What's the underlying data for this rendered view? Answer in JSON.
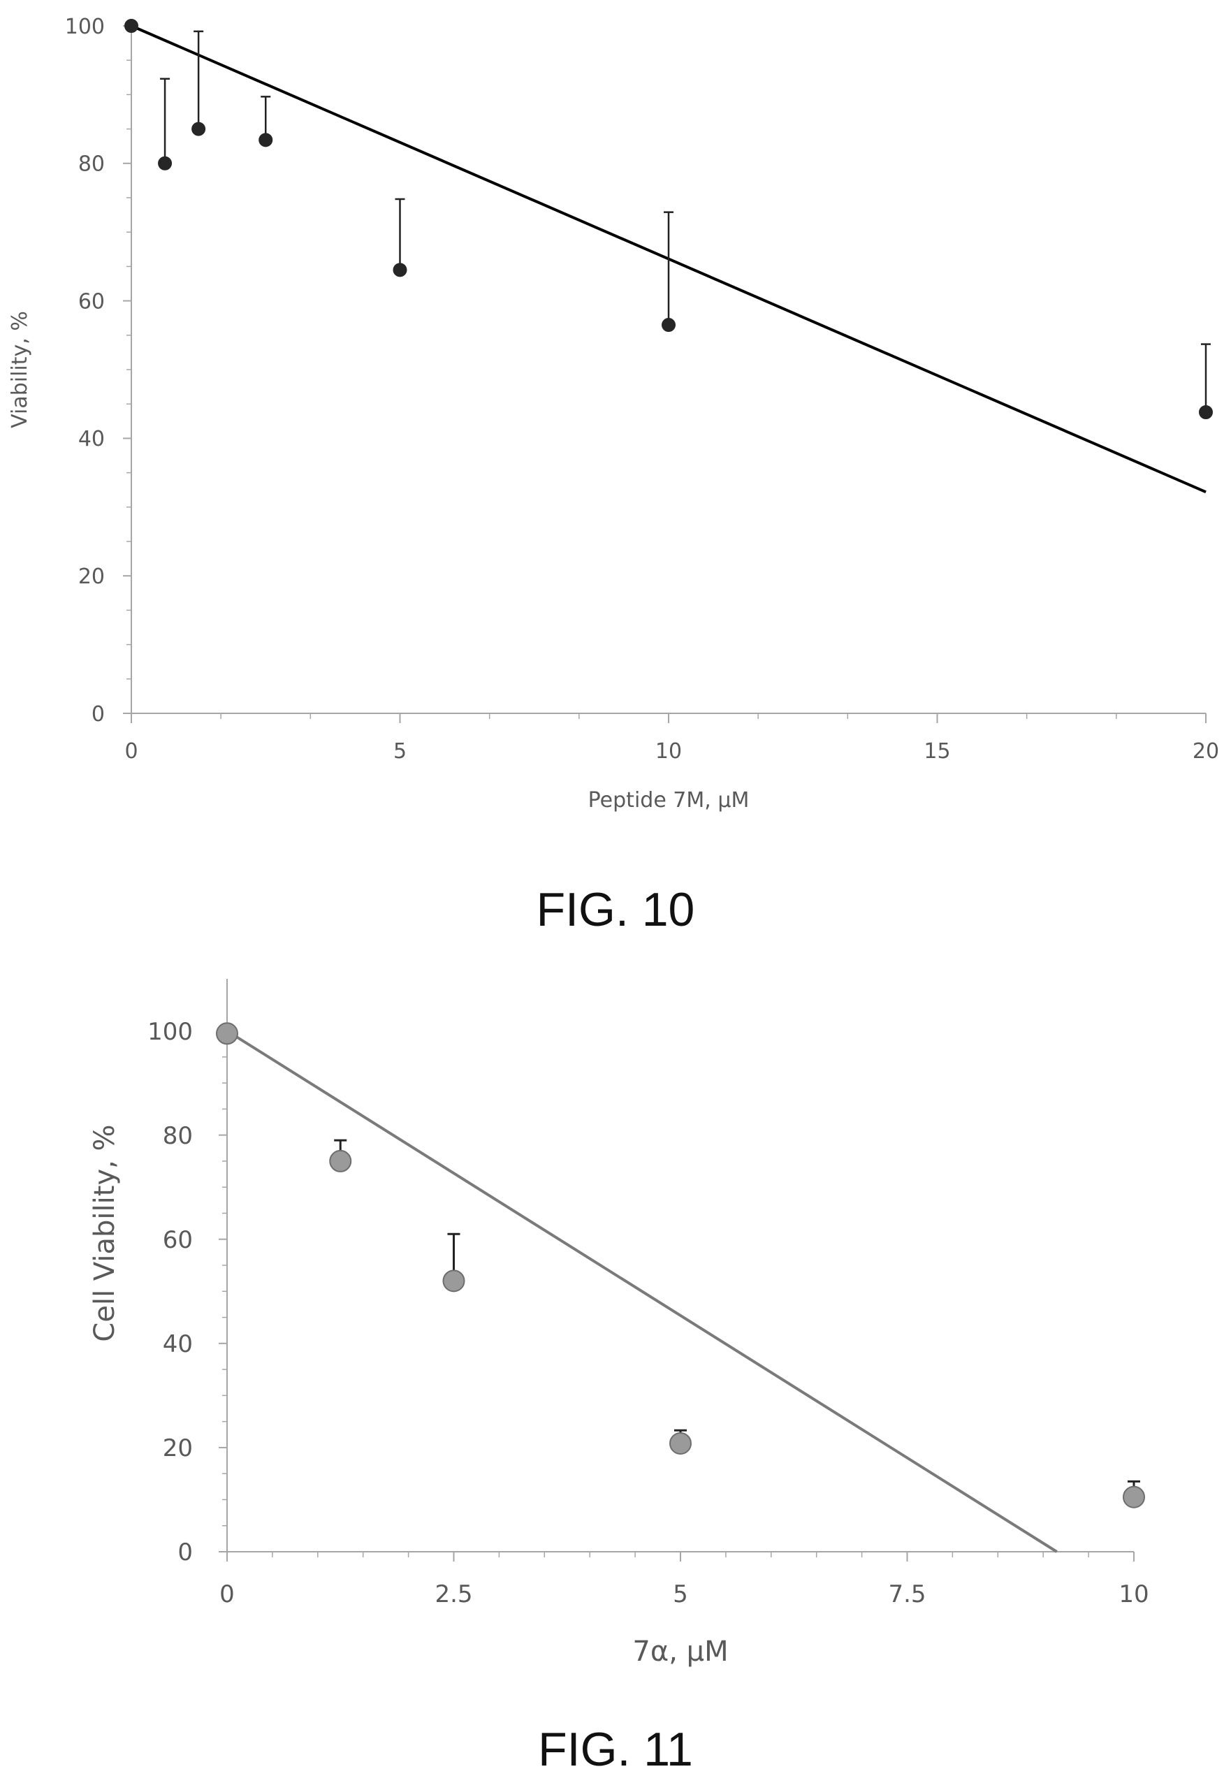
{
  "chart_data": [
    {
      "type": "scatter",
      "caption": "FIG. 10",
      "xlabel": "Peptide 7M, μM",
      "ylabel": "Viability, %",
      "xlim": [
        0,
        20
      ],
      "ylim": [
        0,
        100
      ],
      "x_ticks": [
        0,
        5,
        10,
        15,
        20
      ],
      "y_ticks": [
        0,
        20,
        40,
        60,
        80,
        100
      ],
      "grid": false,
      "points": [
        {
          "x": 0,
          "y": 100,
          "err": 0
        },
        {
          "x": 0.625,
          "y": 80,
          "err": 12.3
        },
        {
          "x": 1.25,
          "y": 85,
          "err": 14.2
        },
        {
          "x": 2.5,
          "y": 83.4,
          "err": 6.3
        },
        {
          "x": 5,
          "y": 64.5,
          "err": 10.3
        },
        {
          "x": 10,
          "y": 56.5,
          "err": 16.4
        },
        {
          "x": 20,
          "y": 43.8,
          "err": 9.9
        }
      ],
      "trendline": {
        "x": [
          0,
          20
        ],
        "y": [
          100,
          32.2
        ]
      },
      "colors": {
        "marker": "#262626",
        "line": "#000000",
        "axis": "#a6a6a6"
      }
    },
    {
      "type": "scatter",
      "caption": "FIG. 11",
      "xlabel": "7α, μM",
      "ylabel": "Cell Viability, %",
      "xlim": [
        0,
        10
      ],
      "ylim": [
        0,
        110
      ],
      "x_ticks": [
        "0",
        "2.5",
        "5",
        "7.5",
        "10"
      ],
      "x_tick_values": [
        0,
        2.5,
        5,
        7.5,
        10
      ],
      "y_ticks": [
        0,
        20,
        40,
        60,
        80,
        100
      ],
      "grid": false,
      "points": [
        {
          "x": 0,
          "y": 99.5,
          "err": 0
        },
        {
          "x": 1.25,
          "y": 75,
          "err": 4
        },
        {
          "x": 2.5,
          "y": 52,
          "err": 9
        },
        {
          "x": 5,
          "y": 20.8,
          "err": 2.5
        },
        {
          "x": 10,
          "y": 10.5,
          "err": 3
        }
      ],
      "trendline": {
        "x": [
          0,
          9.15
        ],
        "y": [
          100,
          0
        ]
      },
      "colors": {
        "marker": "#9a9a9a",
        "marker_stroke": "#6e6e6e",
        "line": "#7a7a7a",
        "axis": "#a6a6a6"
      }
    }
  ]
}
